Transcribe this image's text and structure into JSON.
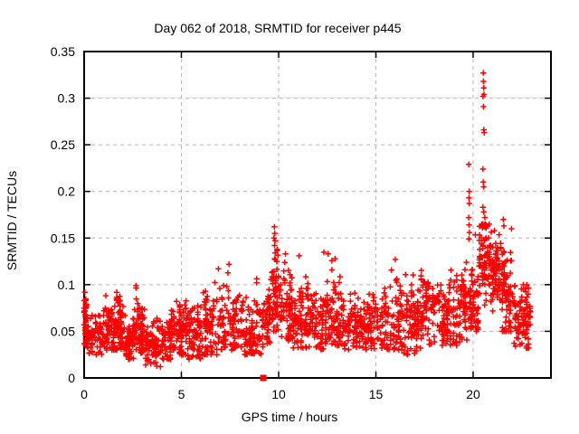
{
  "title": "Day 062 of 2018, SRMTID for receiver p445",
  "xlabel": "GPS time / hours",
  "ylabel": "SRMTID / TECUs",
  "chart_data": {
    "type": "scatter",
    "title": "Day 062 of 2018, SRMTID for receiver p445",
    "xlabel": "GPS time / hours",
    "ylabel": "SRMTID / TECUs",
    "x_range": [
      0,
      24
    ],
    "y_range": [
      0,
      0.35
    ],
    "x_ticks": [
      0,
      5,
      10,
      15,
      20
    ],
    "x_tick_labels": [
      "0",
      "5",
      "10",
      "15",
      "20"
    ],
    "y_ticks": [
      0,
      0.05,
      0.1,
      0.15,
      0.2,
      0.25,
      0.3,
      0.35
    ],
    "y_tick_labels": [
      "0",
      "0.05",
      "0.1",
      "0.15",
      "0.2",
      "0.25",
      "0.3",
      "0.35"
    ],
    "grid": {
      "show": true,
      "color": "#b3b3b3",
      "dash": "4,4"
    },
    "border_color": "#000000",
    "marker_color": "#ff0000",
    "seed": 7,
    "series": [
      {
        "name": "srmtid-points",
        "marker": "plus",
        "color": "#ff0000",
        "envelope_bins": [
          [
            0.0,
            0.12,
            35,
            0.035,
            0.06,
            0.105
          ],
          [
            0.12,
            1.0,
            70,
            0.025,
            0.045,
            0.08
          ],
          [
            1.0,
            1.6,
            55,
            0.03,
            0.05,
            0.09
          ],
          [
            1.6,
            2.1,
            55,
            0.03,
            0.055,
            0.095
          ],
          [
            2.1,
            2.6,
            50,
            0.02,
            0.04,
            0.07
          ],
          [
            2.6,
            3.1,
            55,
            0.025,
            0.05,
            0.1
          ],
          [
            3.1,
            4.0,
            75,
            0.012,
            0.035,
            0.065
          ],
          [
            4.0,
            4.7,
            55,
            0.02,
            0.045,
            0.08
          ],
          [
            4.7,
            5.3,
            55,
            0.025,
            0.05,
            0.09
          ],
          [
            5.3,
            6.1,
            65,
            0.02,
            0.045,
            0.085
          ],
          [
            6.1,
            7.1,
            75,
            0.025,
            0.055,
            0.118
          ],
          [
            7.1,
            8.2,
            80,
            0.03,
            0.06,
            0.115
          ],
          [
            8.2,
            9.2,
            70,
            0.025,
            0.05,
            0.115
          ],
          [
            9.2,
            9.6,
            35,
            0.03,
            0.06,
            0.1
          ],
          [
            9.6,
            10.1,
            55,
            0.05,
            0.09,
            0.162
          ],
          [
            10.1,
            10.7,
            50,
            0.04,
            0.07,
            0.135
          ],
          [
            10.7,
            11.5,
            65,
            0.03,
            0.06,
            0.132
          ],
          [
            11.5,
            12.3,
            65,
            0.03,
            0.055,
            0.1
          ],
          [
            12.3,
            13.3,
            80,
            0.035,
            0.065,
            0.135
          ],
          [
            13.3,
            14.3,
            75,
            0.03,
            0.055,
            0.1
          ],
          [
            14.3,
            15.3,
            70,
            0.03,
            0.055,
            0.098
          ],
          [
            15.3,
            16.3,
            75,
            0.03,
            0.06,
            0.128
          ],
          [
            16.3,
            17.3,
            80,
            0.025,
            0.065,
            0.115
          ],
          [
            17.3,
            18.3,
            80,
            0.035,
            0.07,
            0.122
          ],
          [
            18.3,
            19.3,
            80,
            0.035,
            0.065,
            0.12
          ],
          [
            19.3,
            19.9,
            50,
            0.04,
            0.075,
            0.125
          ],
          [
            19.9,
            20.3,
            45,
            0.05,
            0.085,
            0.155
          ],
          [
            20.3,
            20.9,
            70,
            0.06,
            0.13,
            0.165
          ],
          [
            20.9,
            21.5,
            60,
            0.07,
            0.115,
            0.158
          ],
          [
            21.5,
            22.1,
            60,
            0.05,
            0.09,
            0.148
          ],
          [
            22.1,
            23.0,
            85,
            0.032,
            0.065,
            0.1
          ]
        ],
        "outlier_points": [
          [
            6.9,
            0.117
          ],
          [
            7.45,
            0.122
          ],
          [
            9.76,
            0.15
          ],
          [
            9.78,
            0.162
          ],
          [
            9.79,
            0.142
          ],
          [
            9.8,
            0.155
          ],
          [
            9.82,
            0.147
          ],
          [
            10.35,
            0.133
          ],
          [
            11.05,
            0.131
          ],
          [
            12.55,
            0.133
          ],
          [
            12.9,
            0.128
          ],
          [
            16.0,
            0.127
          ],
          [
            19.65,
            0.124
          ],
          [
            19.77,
            0.229
          ],
          [
            19.77,
            0.172
          ],
          [
            19.78,
            0.193
          ],
          [
            19.78,
            0.149
          ],
          [
            19.79,
            0.164
          ],
          [
            19.8,
            0.2
          ],
          [
            19.8,
            0.187
          ],
          [
            19.81,
            0.156
          ],
          [
            20.5,
            0.302
          ],
          [
            20.5,
            0.224
          ],
          [
            20.5,
            0.183
          ],
          [
            20.52,
            0.327
          ],
          [
            20.52,
            0.21
          ],
          [
            20.53,
            0.318
          ],
          [
            20.53,
            0.291
          ],
          [
            20.54,
            0.205
          ],
          [
            20.55,
            0.311
          ],
          [
            20.55,
            0.266
          ],
          [
            20.55,
            0.178
          ],
          [
            20.56,
            0.304
          ],
          [
            20.57,
            0.263
          ],
          [
            20.6,
            0.172
          ],
          [
            20.62,
            0.165
          ],
          [
            21.55,
            0.17
          ],
          [
            21.58,
            0.163
          ],
          [
            21.97,
            0.16
          ]
        ]
      },
      {
        "name": "flag-marker",
        "marker": "filled-square",
        "color": "#ff0000",
        "points": [
          [
            9.21,
            0.0
          ]
        ]
      }
    ]
  }
}
